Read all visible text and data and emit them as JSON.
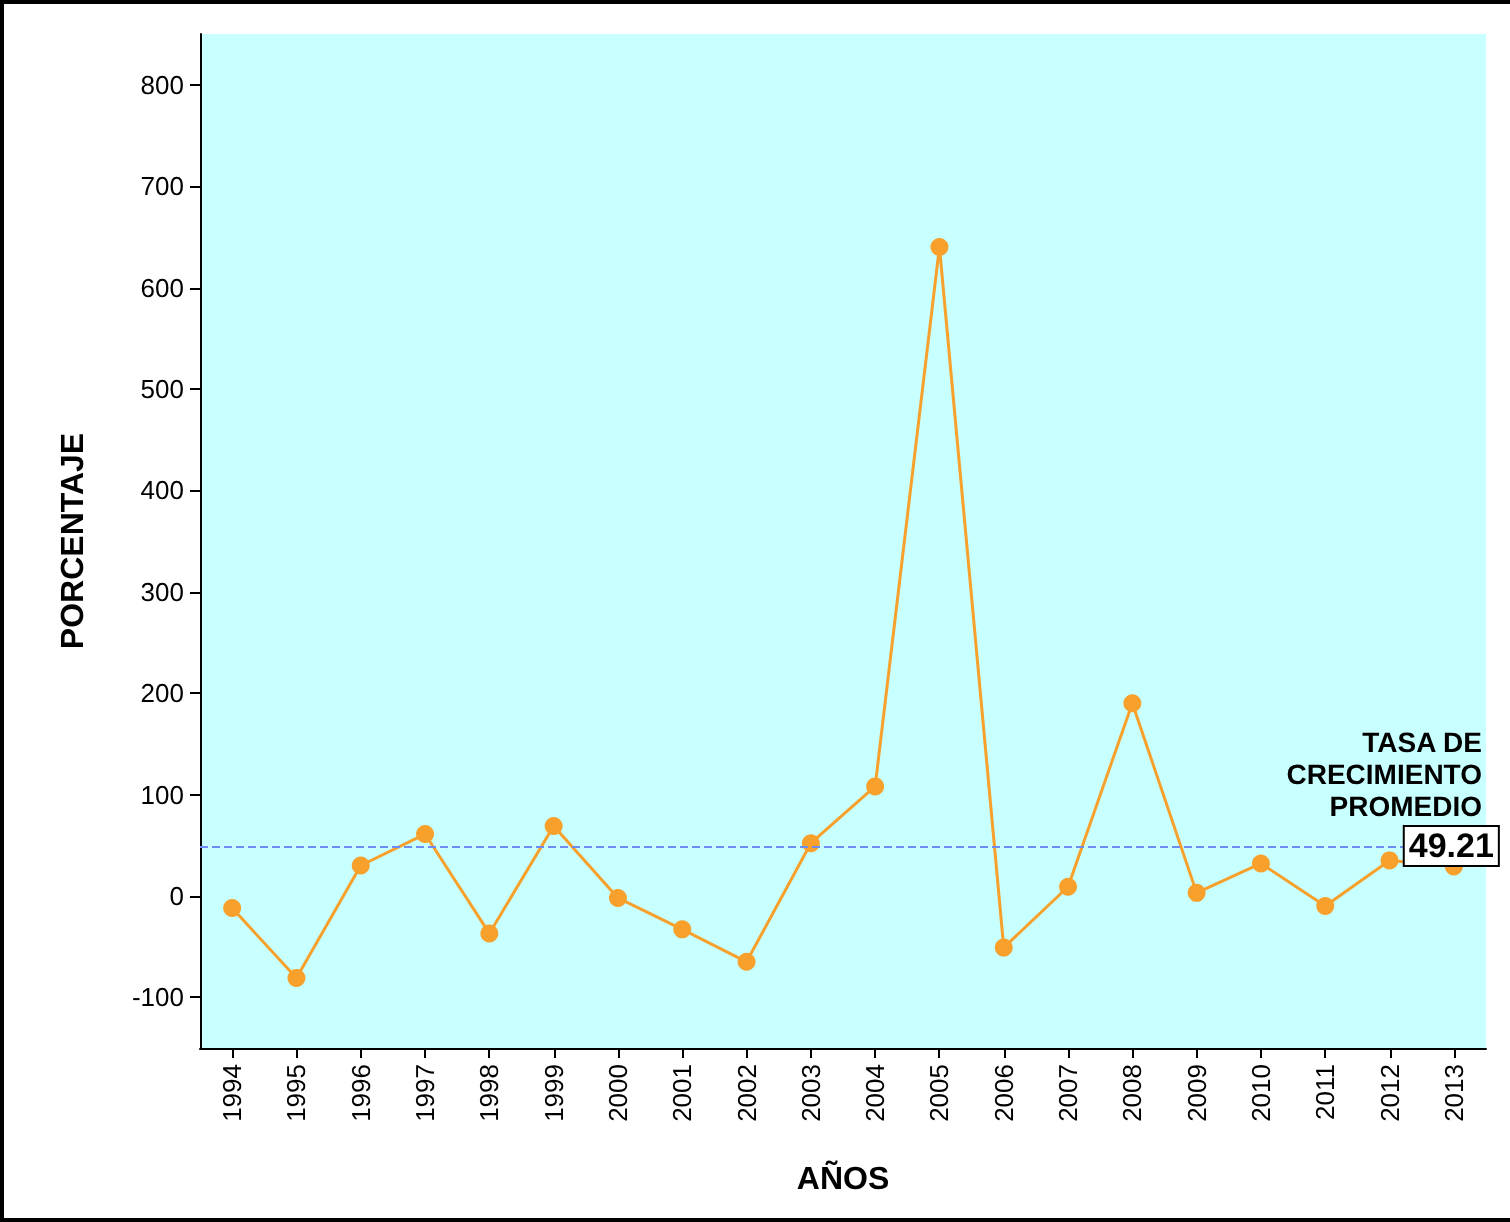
{
  "chart_data": {
    "type": "line",
    "xlabel": "AÑOS",
    "ylabel": "PORCENTAJE",
    "categories": [
      "1994",
      "1995",
      "1996",
      "1997",
      "1998",
      "1999",
      "2000",
      "2001",
      "2002",
      "2003",
      "2004",
      "2005",
      "2006",
      "2007",
      "2008",
      "2009",
      "2010",
      "2011",
      "2012",
      "2013"
    ],
    "series": [
      {
        "color": "#f7a02b",
        "values": [
          -12,
          -81,
          30,
          61,
          -37,
          69,
          -2,
          -33,
          -65,
          52,
          108,
          640,
          -51,
          9,
          190,
          3,
          32,
          -10,
          35,
          29
        ]
      }
    ],
    "ylim": [
      -150,
      850
    ],
    "yticks": [
      -100,
      0,
      100,
      200,
      300,
      400,
      500,
      600,
      700,
      800
    ],
    "ref_lines": [
      {
        "axis": "y",
        "value": 49.21,
        "label": "TASA DE\nCRECIMIENTO\nPROMEDIO",
        "color": "#6f8cf5",
        "line_style": "dashed"
      }
    ],
    "annotations": [
      {
        "text": "49.21",
        "x": "2013",
        "y": 49.21
      }
    ],
    "grid": false,
    "marker": "circle",
    "line_style": "solid"
  }
}
